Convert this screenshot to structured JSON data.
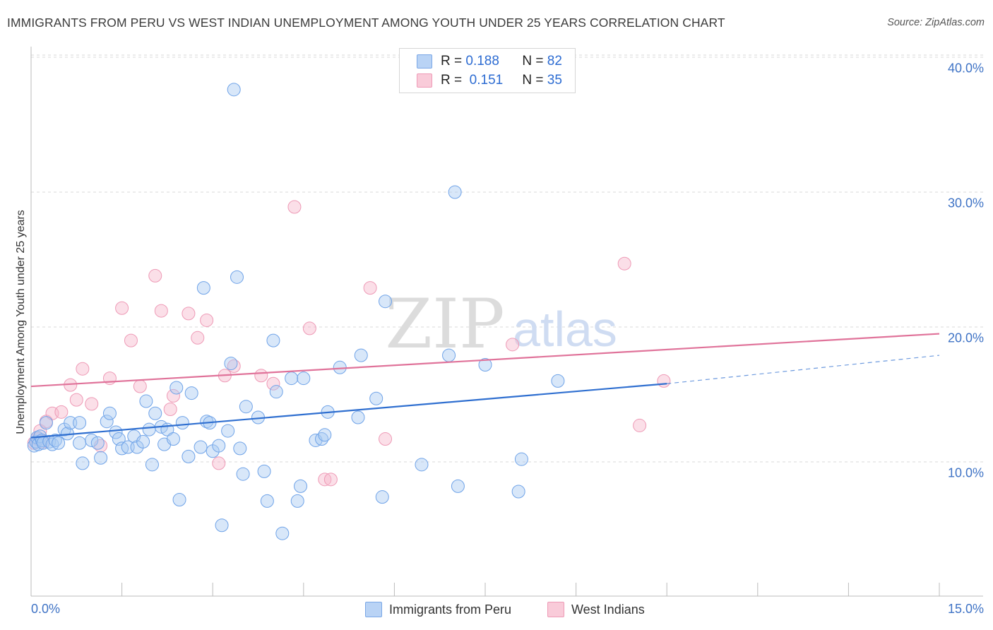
{
  "title": "IMMIGRANTS FROM PERU VS WEST INDIAN UNEMPLOYMENT AMONG YOUTH UNDER 25 YEARS CORRELATION CHART",
  "source": "Source: ZipAtlas.com",
  "watermark": {
    "zip": "ZIP",
    "atlas": "atlas"
  },
  "legend": {
    "rows": [
      {
        "r_label": "R =",
        "r_value": "0.188",
        "n_label": "N =",
        "n_value": "82"
      },
      {
        "r_label": "R =",
        "r_value": " 0.151",
        "n_label": "N =",
        "n_value": "35"
      }
    ]
  },
  "bottom_legend": [
    "Immigrants from Peru",
    "West Indians"
  ],
  "chart_data": {
    "type": "scatter",
    "title": "IMMIGRANTS FROM PERU VS WEST INDIAN UNEMPLOYMENT AMONG YOUTH UNDER 25 YEARS CORRELATION CHART",
    "xlabel": "",
    "ylabel": "Unemployment Among Youth under 25 years",
    "xlim": [
      0,
      15
    ],
    "ylim": [
      0,
      42
    ],
    "x_tick_labels": [
      "0.0%",
      "15.0%"
    ],
    "y_ticks": [
      10,
      20,
      30,
      40
    ],
    "y_tick_labels": [
      "10.0%",
      "20.0%",
      "30.0%",
      "40.0%"
    ],
    "grid": true,
    "colors": {
      "peru": "#6fa3e8",
      "peru_line": "#2f6fd0",
      "west": "#f0a0b8",
      "west_line": "#e0739a"
    },
    "series": [
      {
        "name": "Immigrants from Peru",
        "R": 0.188,
        "N": 82,
        "trend": {
          "x0": 0,
          "y0": 11.8,
          "x1": 10.5,
          "y1": 15.8,
          "dash_to_x": 15,
          "dash_to_y": 17.9
        },
        "points": [
          [
            0.05,
            11.2
          ],
          [
            0.08,
            11.5
          ],
          [
            0.1,
            11.8
          ],
          [
            0.12,
            11.3
          ],
          [
            0.15,
            11.9
          ],
          [
            0.18,
            11.6
          ],
          [
            0.2,
            11.4
          ],
          [
            0.25,
            12.9
          ],
          [
            0.3,
            11.5
          ],
          [
            0.35,
            11.3
          ],
          [
            0.4,
            11.6
          ],
          [
            0.45,
            11.4
          ],
          [
            0.55,
            12.4
          ],
          [
            0.6,
            12.1
          ],
          [
            0.65,
            12.9
          ],
          [
            0.8,
            11.4
          ],
          [
            0.8,
            12.9
          ],
          [
            0.85,
            9.9
          ],
          [
            1.0,
            11.6
          ],
          [
            1.1,
            11.4
          ],
          [
            1.15,
            10.3
          ],
          [
            1.25,
            13
          ],
          [
            1.3,
            13.6
          ],
          [
            1.4,
            12.2
          ],
          [
            1.45,
            11.7
          ],
          [
            1.5,
            11
          ],
          [
            1.6,
            11.1
          ],
          [
            1.7,
            11.9
          ],
          [
            1.75,
            11.1
          ],
          [
            1.85,
            11.5
          ],
          [
            1.9,
            14.5
          ],
          [
            1.95,
            12.4
          ],
          [
            2.0,
            9.8
          ],
          [
            2.05,
            13.6
          ],
          [
            2.15,
            12.6
          ],
          [
            2.2,
            11.3
          ],
          [
            2.25,
            12.4
          ],
          [
            2.35,
            11.7
          ],
          [
            2.4,
            15.5
          ],
          [
            2.45,
            7.2
          ],
          [
            2.5,
            12.9
          ],
          [
            2.6,
            10.4
          ],
          [
            2.65,
            15.1
          ],
          [
            2.8,
            11.1
          ],
          [
            2.85,
            22.9
          ],
          [
            2.9,
            13
          ],
          [
            2.95,
            12.9
          ],
          [
            3.0,
            10.8
          ],
          [
            3.1,
            11.2
          ],
          [
            3.15,
            5.3
          ],
          [
            3.25,
            12.3
          ],
          [
            3.3,
            17.3
          ],
          [
            3.35,
            37.6
          ],
          [
            3.4,
            23.7
          ],
          [
            3.45,
            11
          ],
          [
            3.5,
            9.1
          ],
          [
            3.55,
            14.1
          ],
          [
            3.75,
            13.3
          ],
          [
            3.85,
            9.3
          ],
          [
            3.9,
            7.1
          ],
          [
            4.0,
            19.0
          ],
          [
            4.05,
            15.2
          ],
          [
            4.15,
            4.7
          ],
          [
            4.3,
            16.2
          ],
          [
            4.4,
            7.1
          ],
          [
            4.45,
            8.2
          ],
          [
            4.5,
            16.2
          ],
          [
            4.7,
            11.6
          ],
          [
            4.8,
            11.7
          ],
          [
            4.85,
            12
          ],
          [
            4.9,
            13.7
          ],
          [
            5.1,
            17
          ],
          [
            5.4,
            13.3
          ],
          [
            5.45,
            17.9
          ],
          [
            5.7,
            14.7
          ],
          [
            5.8,
            7.4
          ],
          [
            5.85,
            21.9
          ],
          [
            6.45,
            9.8
          ],
          [
            6.9,
            17.9
          ],
          [
            7.0,
            30
          ],
          [
            7.05,
            8.2
          ],
          [
            7.5,
            17.2
          ],
          [
            8.05,
            7.8
          ],
          [
            8.1,
            10.2
          ],
          [
            8.7,
            16
          ]
        ]
      },
      {
        "name": "West Indians",
        "R": 0.151,
        "N": 35,
        "trend": {
          "x0": 0,
          "y0": 15.6,
          "x1": 15,
          "y1": 19.5
        },
        "points": [
          [
            0.05,
            11.4
          ],
          [
            0.1,
            11.7
          ],
          [
            0.15,
            12.3
          ],
          [
            0.2,
            11.5
          ],
          [
            0.25,
            13
          ],
          [
            0.35,
            13.6
          ],
          [
            0.5,
            13.7
          ],
          [
            0.65,
            15.7
          ],
          [
            0.75,
            14.6
          ],
          [
            0.85,
            16.9
          ],
          [
            1.0,
            14.3
          ],
          [
            1.15,
            11.2
          ],
          [
            1.3,
            16.2
          ],
          [
            1.5,
            21.4
          ],
          [
            1.65,
            19.0
          ],
          [
            1.8,
            15.6
          ],
          [
            2.05,
            23.8
          ],
          [
            2.15,
            21.2
          ],
          [
            2.3,
            13.9
          ],
          [
            2.35,
            14.9
          ],
          [
            2.6,
            21
          ],
          [
            2.75,
            19.2
          ],
          [
            2.9,
            20.5
          ],
          [
            3.1,
            9.9
          ],
          [
            3.2,
            16.4
          ],
          [
            3.35,
            17.1
          ],
          [
            3.8,
            16.4
          ],
          [
            4.0,
            15.8
          ],
          [
            4.35,
            28.9
          ],
          [
            4.6,
            19.9
          ],
          [
            4.85,
            8.7
          ],
          [
            4.95,
            8.7
          ],
          [
            5.6,
            22.9
          ],
          [
            5.85,
            11.7
          ],
          [
            7.95,
            18.7
          ],
          [
            9.8,
            24.7
          ],
          [
            10.05,
            12.7
          ],
          [
            10.45,
            16
          ]
        ]
      }
    ]
  }
}
